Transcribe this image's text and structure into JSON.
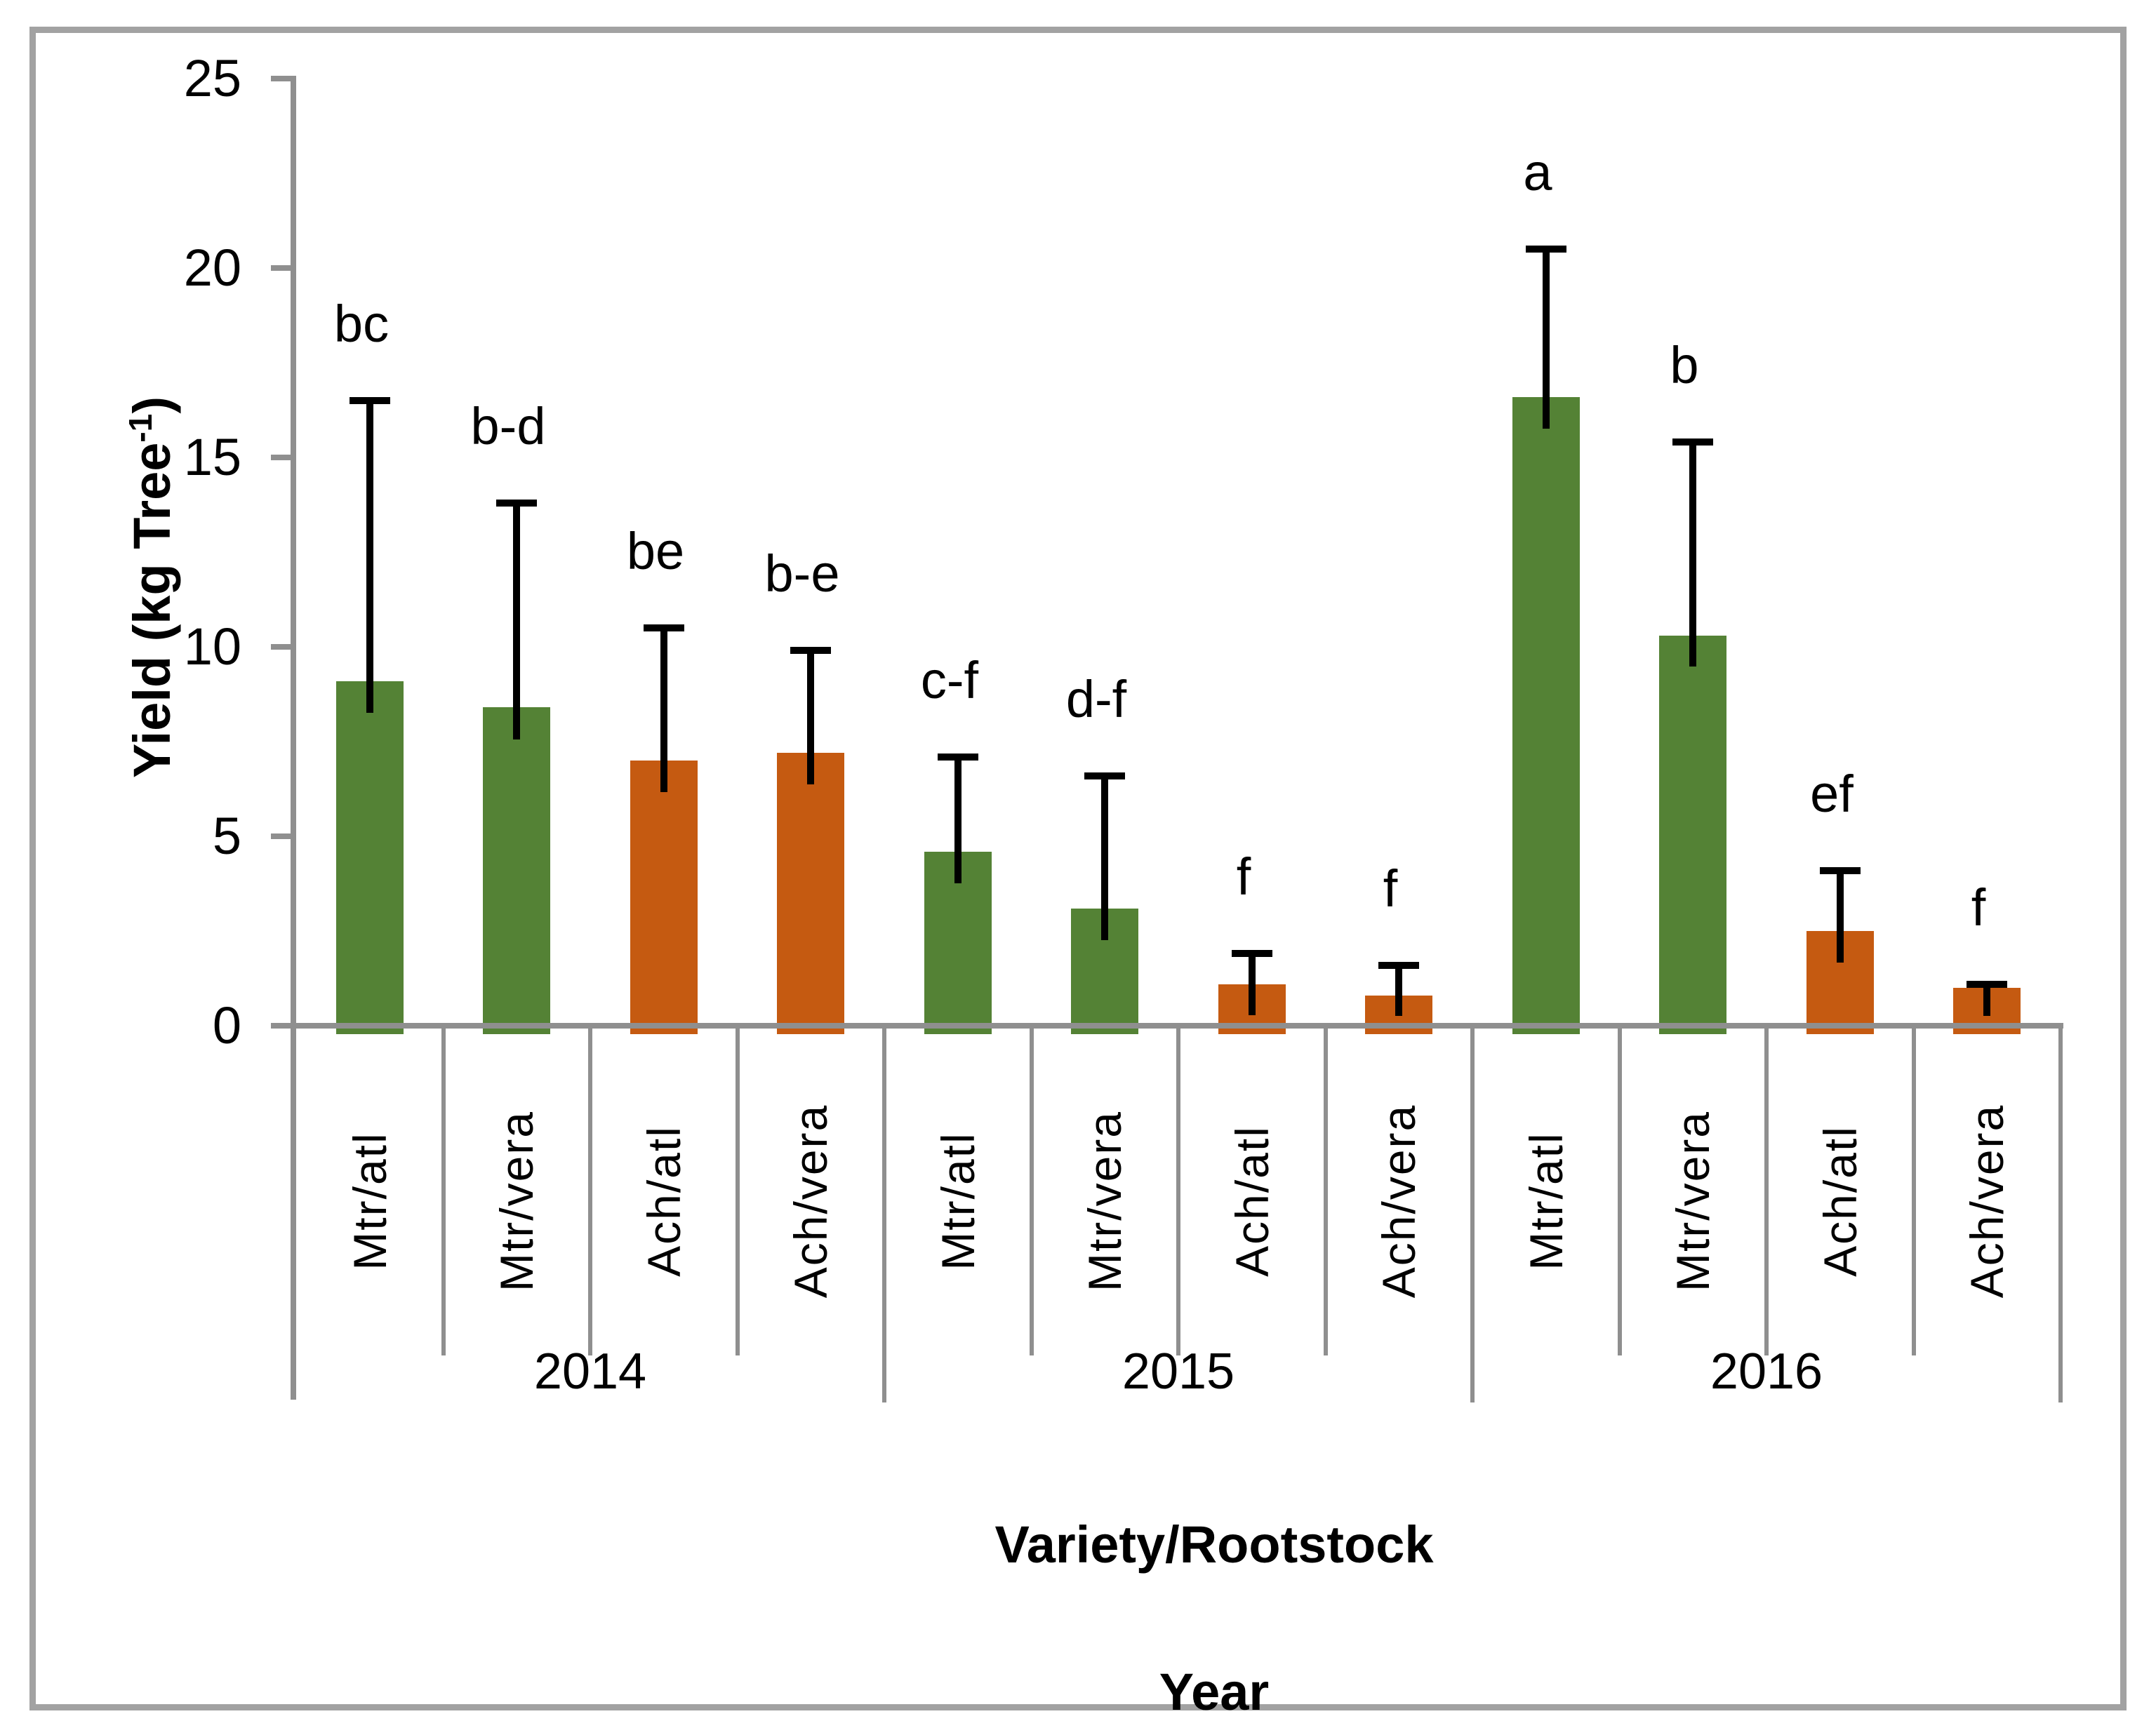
{
  "chart_data": {
    "type": "bar",
    "title": "",
    "ylabel": {
      "prefix": "Yield (kg Tree",
      "superscript": "-1",
      "suffix": ")"
    },
    "xlabel_primary": "Variety/Rootstock",
    "xlabel_secondary": "Year",
    "ylim": [
      0,
      25
    ],
    "yticks": [
      "0",
      "5",
      "10",
      "15",
      "20",
      "25"
    ],
    "grid": false,
    "legend": null,
    "bar_colors": {
      "green": "#548235",
      "orange": "#C55A11"
    },
    "axis_color": "#8f8f8f",
    "error_bar_color": "#000000",
    "groups": [
      {
        "year": "2014",
        "bars": [
          {
            "category": "Mtr/atl",
            "value": 9.1,
            "error_top": 16.5,
            "letter": "bc",
            "color": "green"
          },
          {
            "category": "Mtr/vera",
            "value": 8.4,
            "error_top": 13.8,
            "letter": "b-d",
            "color": "green"
          },
          {
            "category": "Ach/atl",
            "value": 7.0,
            "error_top": 10.5,
            "letter": "be",
            "color": "orange"
          },
          {
            "category": "Ach/vera",
            "value": 7.2,
            "error_top": 9.9,
            "letter": "b-e",
            "color": "orange"
          }
        ]
      },
      {
        "year": "2015",
        "bars": [
          {
            "category": "Mtr/atl",
            "value": 4.6,
            "error_top": 7.1,
            "letter": "c-f",
            "color": "green"
          },
          {
            "category": "Mtr/vera",
            "value": 3.1,
            "error_top": 6.6,
            "letter": "d-f",
            "color": "green"
          },
          {
            "category": "Ach/atl",
            "value": 1.1,
            "error_top": 1.9,
            "letter": "f",
            "color": "orange"
          },
          {
            "category": "Ach/vera",
            "value": 0.8,
            "error_top": 1.6,
            "letter": "f",
            "color": "orange"
          }
        ]
      },
      {
        "year": "2016",
        "bars": [
          {
            "category": "Mtr/atl",
            "value": 16.6,
            "error_top": 20.5,
            "letter": "a",
            "color": "green"
          },
          {
            "category": "Mtr/vera",
            "value": 10.3,
            "error_top": 15.4,
            "letter": "b",
            "color": "green"
          },
          {
            "category": "Ach/atl",
            "value": 2.5,
            "error_top": 4.1,
            "letter": "ef",
            "color": "orange"
          },
          {
            "category": "Ach/vera",
            "value": 1.0,
            "error_top": 1.1,
            "letter": "f",
            "color": "orange"
          }
        ]
      }
    ]
  }
}
